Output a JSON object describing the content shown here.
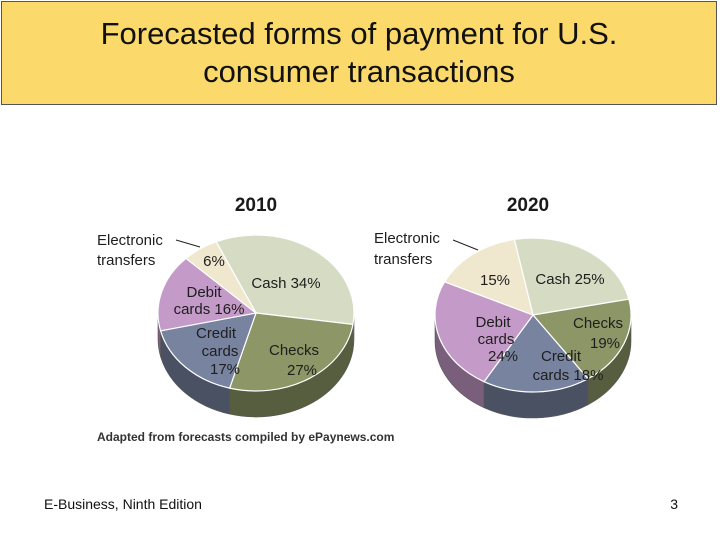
{
  "title": "Forecasted forms of payment for U.S. consumer transactions",
  "footer": {
    "edition": "E-Business, Ninth Edition",
    "page_number": "3"
  },
  "chart_data": [
    {
      "type": "pie",
      "title": "2010",
      "slices": [
        {
          "label": "Cash",
          "value": 34,
          "color": "#d6dcc4"
        },
        {
          "label": "Checks",
          "value": 27,
          "color": "#8c9666"
        },
        {
          "label": "Credit cards",
          "value": 17,
          "color": "#77839f"
        },
        {
          "label": "Debit cards",
          "value": 16,
          "color": "#c49ac8"
        },
        {
          "label": "Electronic transfers",
          "value": 6,
          "color": "#f0e7cf"
        }
      ],
      "labels": {
        "cash": "Cash 34%",
        "checks": [
          "Checks",
          "27%"
        ],
        "credit": [
          "Credit",
          "cards",
          "17%"
        ],
        "debit": [
          "Debit",
          "cards 16%"
        ],
        "electronic_pct": "6%",
        "electronic_callout": [
          "Electronic",
          "transfers"
        ]
      }
    },
    {
      "type": "pie",
      "title": "2020",
      "slices": [
        {
          "label": "Cash",
          "value": 25,
          "color": "#d6dcc4"
        },
        {
          "label": "Checks",
          "value": 19,
          "color": "#8c9666"
        },
        {
          "label": "Credit cards",
          "value": 18,
          "color": "#77839f"
        },
        {
          "label": "Debit cards",
          "value": 24,
          "color": "#c49ac8"
        },
        {
          "label": "Electronic transfers",
          "value": 15,
          "color": "#f0e7cf"
        }
      ],
      "labels": {
        "cash": "Cash 25%",
        "checks": [
          "Checks",
          "19%"
        ],
        "credit": [
          "Credit",
          "cards 18%"
        ],
        "debit": [
          "Debit",
          "cards",
          "24%"
        ],
        "electronic_pct": "15%",
        "electronic_callout": [
          "Electronic",
          "transfers"
        ]
      }
    }
  ],
  "source_note": "Adapted from forecasts compiled by ePaynews.com"
}
